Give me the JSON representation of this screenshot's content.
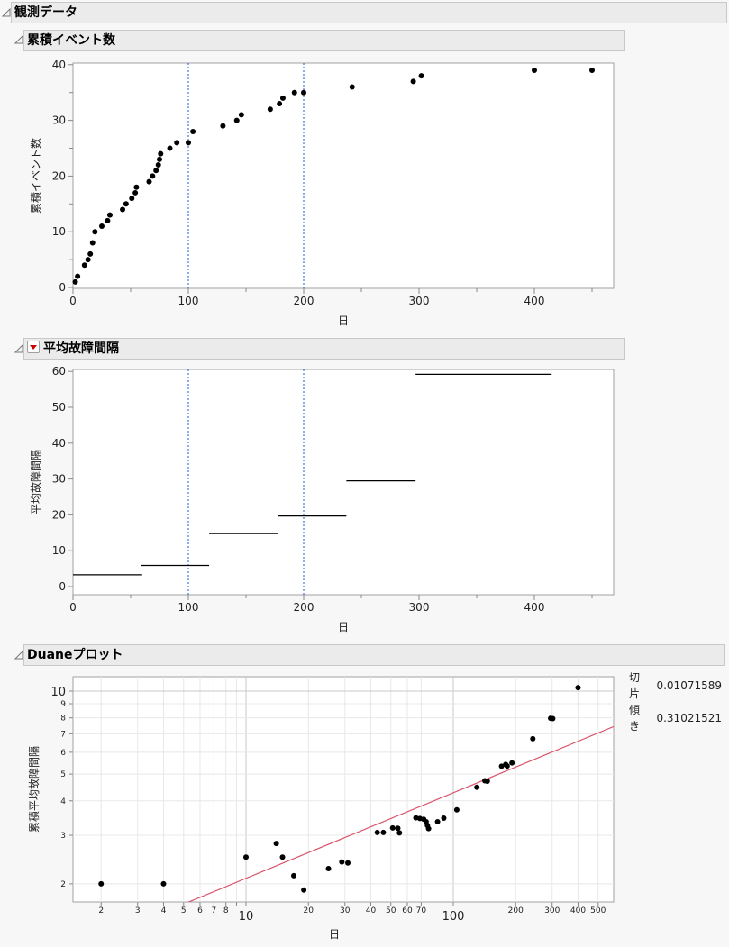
{
  "outline": {
    "root_title": "観測データ",
    "sections": [
      {
        "title": "累積イベント数"
      },
      {
        "title": "平均故障間隔"
      },
      {
        "title": "Duaneプロット"
      }
    ]
  },
  "duane_stats": {
    "rows": [
      {
        "label": "切片",
        "value": "0.01071589"
      },
      {
        "label": "傾き",
        "value": "0.31021521"
      }
    ]
  },
  "chart_data": [
    {
      "type": "scatter",
      "title": "累積イベント数",
      "xlabel": "日",
      "ylabel": "累積イベント数",
      "xlim": [
        0,
        465
      ],
      "ylim": [
        0,
        40
      ],
      "xticks": [
        0,
        100,
        200,
        300,
        400
      ],
      "yticks": [
        0,
        10,
        20,
        30,
        40
      ],
      "reference_lines_x": [
        100,
        200
      ],
      "points": [
        [
          2,
          1
        ],
        [
          4,
          2
        ],
        [
          10,
          4
        ],
        [
          13,
          5
        ],
        [
          15,
          6
        ],
        [
          17,
          8
        ],
        [
          19,
          10
        ],
        [
          25,
          11
        ],
        [
          30,
          12
        ],
        [
          32,
          13
        ],
        [
          43,
          14
        ],
        [
          46,
          15
        ],
        [
          51,
          16
        ],
        [
          54,
          17
        ],
        [
          55,
          18
        ],
        [
          66,
          19
        ],
        [
          69,
          20
        ],
        [
          72,
          21
        ],
        [
          74,
          22
        ],
        [
          75,
          23
        ],
        [
          76,
          24
        ],
        [
          84,
          25
        ],
        [
          90,
          26
        ],
        [
          100,
          26
        ],
        [
          104,
          28
        ],
        [
          130,
          29
        ],
        [
          142,
          30
        ],
        [
          146,
          31
        ],
        [
          171,
          32
        ],
        [
          179,
          33
        ],
        [
          182,
          34
        ],
        [
          192,
          35
        ],
        [
          200,
          35
        ],
        [
          242,
          36
        ],
        [
          295,
          37
        ],
        [
          302,
          38
        ],
        [
          400,
          39
        ],
        [
          450,
          39
        ]
      ]
    },
    {
      "type": "line",
      "title": "平均故障間隔",
      "xlabel": "日",
      "ylabel": "平均故障間隔",
      "xlim": [
        0,
        465
      ],
      "ylim": [
        -2,
        62
      ],
      "xticks": [
        0,
        100,
        200,
        300,
        400
      ],
      "yticks": [
        0,
        10,
        20,
        30,
        40,
        50,
        60
      ],
      "reference_lines_x": [
        100,
        200
      ],
      "segments": [
        {
          "x0": 0,
          "x1": 60,
          "y": 3.3
        },
        {
          "x0": 59,
          "x1": 118,
          "y": 5.9
        },
        {
          "x0": 118,
          "x1": 178,
          "y": 14.8
        },
        {
          "x0": 178,
          "x1": 237,
          "y": 19.7
        },
        {
          "x0": 237,
          "x1": 297,
          "y": 29.5
        },
        {
          "x0": 297,
          "x1": 415,
          "y": 59.2
        }
      ]
    },
    {
      "type": "scatter",
      "title": "Duaneプロット",
      "xlabel": "日",
      "ylabel": "累積平均故障間隔",
      "xscale": "log",
      "yscale": "log",
      "xlim": [
        1.5,
        560
      ],
      "ylim": [
        1.8,
        11
      ],
      "xticks": [
        2,
        3,
        4,
        5,
        6,
        7,
        8,
        9,
        10,
        20,
        30,
        40,
        50,
        60,
        70,
        100,
        200,
        300,
        400,
        500
      ],
      "xtick_labels": [
        "2",
        "3",
        "4",
        "5",
        "6",
        "7",
        "8",
        "",
        "10",
        "20",
        "30",
        "40",
        "50",
        "60",
        "70",
        "100",
        "200",
        "300",
        "400",
        "500"
      ],
      "yticks": [
        2,
        3,
        4,
        5,
        6,
        7,
        8,
        9,
        10
      ],
      "fit_line": {
        "intercept": 0.01071589,
        "slope": 0.31021521,
        "color": "#d9536b"
      },
      "points": [
        [
          2,
          2
        ],
        [
          4,
          2
        ],
        [
          10,
          2.5
        ],
        [
          14,
          2.8
        ],
        [
          15,
          2.5
        ],
        [
          17,
          2.14
        ],
        [
          19,
          1.9
        ],
        [
          25,
          2.27
        ],
        [
          29,
          2.4
        ],
        [
          31,
          2.38
        ],
        [
          43,
          3.07
        ],
        [
          46,
          3.07
        ],
        [
          51,
          3.19
        ],
        [
          54,
          3.18
        ],
        [
          55,
          3.06
        ],
        [
          66,
          3.47
        ],
        [
          69,
          3.45
        ],
        [
          72,
          3.43
        ],
        [
          74,
          3.36
        ],
        [
          75,
          3.26
        ],
        [
          76,
          3.17
        ],
        [
          84,
          3.36
        ],
        [
          90,
          3.46
        ],
        [
          104,
          3.71
        ],
        [
          130,
          4.48
        ],
        [
          142,
          4.73
        ],
        [
          146,
          4.71
        ],
        [
          171,
          5.34
        ],
        [
          179,
          5.42
        ],
        [
          182,
          5.35
        ],
        [
          192,
          5.49
        ],
        [
          242,
          6.72
        ],
        [
          295,
          7.97
        ],
        [
          302,
          7.95
        ],
        [
          400,
          10.3
        ]
      ]
    }
  ]
}
